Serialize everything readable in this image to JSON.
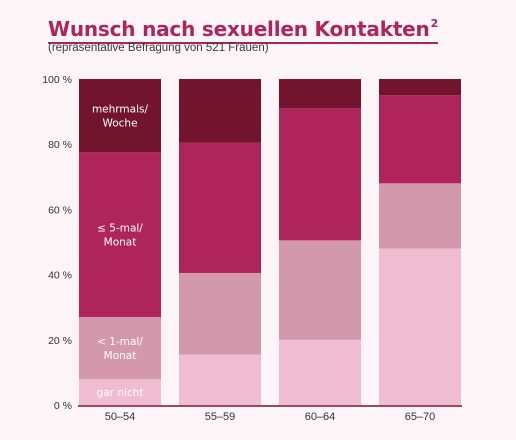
{
  "header": {
    "title": "Wunsch nach sexuellen Kontakten",
    "title_sup": "2",
    "subtitle": "(repräsentative Befragung von 521 Frauen)"
  },
  "chart_data": {
    "type": "bar",
    "stacked": true,
    "categories": [
      "50–54",
      "55–59",
      "60–64",
      "65–70"
    ],
    "ylim": [
      0,
      100
    ],
    "yticks": [
      0,
      20,
      40,
      60,
      80,
      100
    ],
    "ytick_labels": [
      "0 %",
      "20 %",
      "40 %",
      "60 %",
      "80 %",
      "100 %"
    ],
    "series": [
      {
        "name": "gar nicht",
        "label_lines": [
          "gar nicht"
        ],
        "color": "#f0bcd2",
        "values": [
          8,
          15.5,
          20,
          48
        ]
      },
      {
        "name": "< 1-mal/ Monat",
        "label_lines": [
          "< 1-mal/",
          "Monat"
        ],
        "color": "#d498ad",
        "values": [
          19,
          25,
          30.5,
          20
        ]
      },
      {
        "name": "≤ 5-mal/ Monat",
        "label_lines": [
          "≤ 5-mal/",
          "Monat"
        ],
        "color": "#b0245c",
        "values": [
          50.5,
          40,
          40.5,
          27
        ]
      },
      {
        "name": "mehrmals/ Woche",
        "label_lines": [
          "mehrmals/",
          "Woche"
        ],
        "color": "#73142f",
        "values": [
          22.5,
          19.5,
          9,
          5
        ]
      }
    ]
  }
}
